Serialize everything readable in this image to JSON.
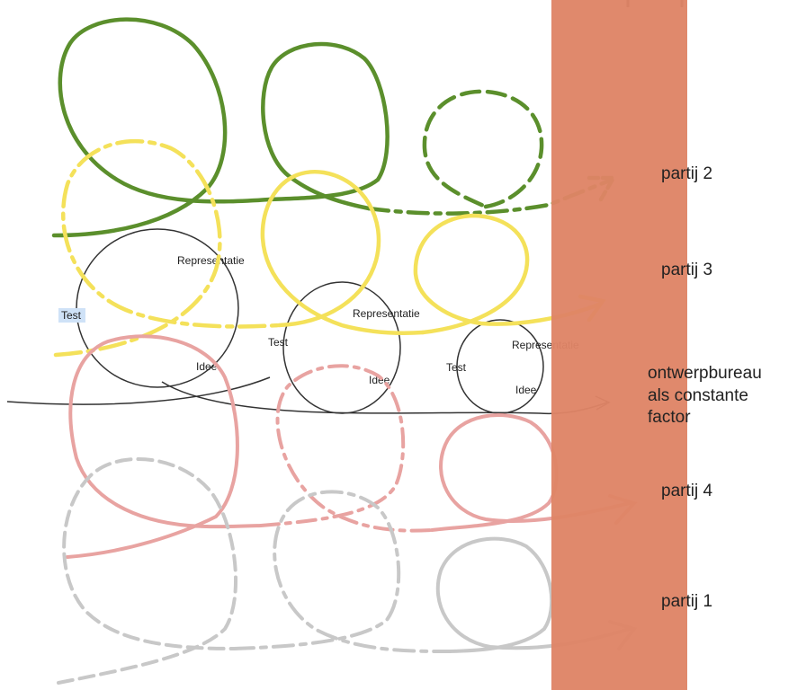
{
  "cycle_terms": {
    "test": "Test",
    "representatie": "Representatie",
    "idee": "Idee"
  },
  "labels": {
    "partij_2": "partij 2",
    "partij_3": "partij 3",
    "ontwerpbureau_line1": "ontwerpbureau",
    "ontwerpbureau_line2": "als constante",
    "ontwerpbureau_line3": "factor",
    "partij_4": "partij 4",
    "partij_1": "partij 1"
  },
  "colors": {
    "green": "#5b8f2c",
    "yellow": "#f4e15a",
    "black": "#333333",
    "pink": "#e8a3a1",
    "gray": "#c8c8c8",
    "band": "#df8466",
    "highlight": "#cfe2f7"
  }
}
